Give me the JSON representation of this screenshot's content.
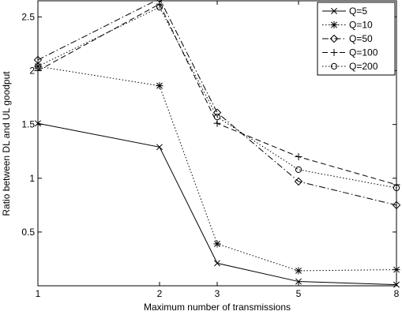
{
  "chart_data": {
    "type": "line",
    "title": "",
    "xlabel": "Maximum number of transmissions",
    "ylabel": "Ratio between DL and UL goodput",
    "x_categories": [
      "1",
      "2",
      "3",
      "5",
      "8"
    ],
    "ylim": [
      0.0,
      2.65
    ],
    "yticks": [
      0.5,
      1,
      1.5,
      2,
      2.5
    ],
    "ytick_labels": [
      "0.5",
      "1",
      "1.5",
      "2",
      "2.5"
    ],
    "grid": false,
    "legend_position": "top-right",
    "series": [
      {
        "name": "Q=5",
        "marker": "x",
        "dash": "solid",
        "values": [
          1.51,
          1.29,
          0.21,
          0.04,
          0.01
        ]
      },
      {
        "name": "Q=10",
        "marker": "star",
        "dash": "dotted",
        "values": [
          2.04,
          1.86,
          0.39,
          0.14,
          0.15
        ]
      },
      {
        "name": "Q=50",
        "marker": "diamond",
        "dash": "dashdot",
        "values": [
          2.1,
          2.67,
          1.61,
          0.97,
          0.75
        ]
      },
      {
        "name": "Q=100",
        "marker": "plus",
        "dash": "dashed",
        "values": [
          2.0,
          2.62,
          1.51,
          1.2,
          0.94
        ]
      },
      {
        "name": "Q=200",
        "marker": "circle",
        "dash": "dotted",
        "values": [
          2.04,
          2.59,
          1.57,
          1.08,
          0.91
        ]
      }
    ]
  }
}
